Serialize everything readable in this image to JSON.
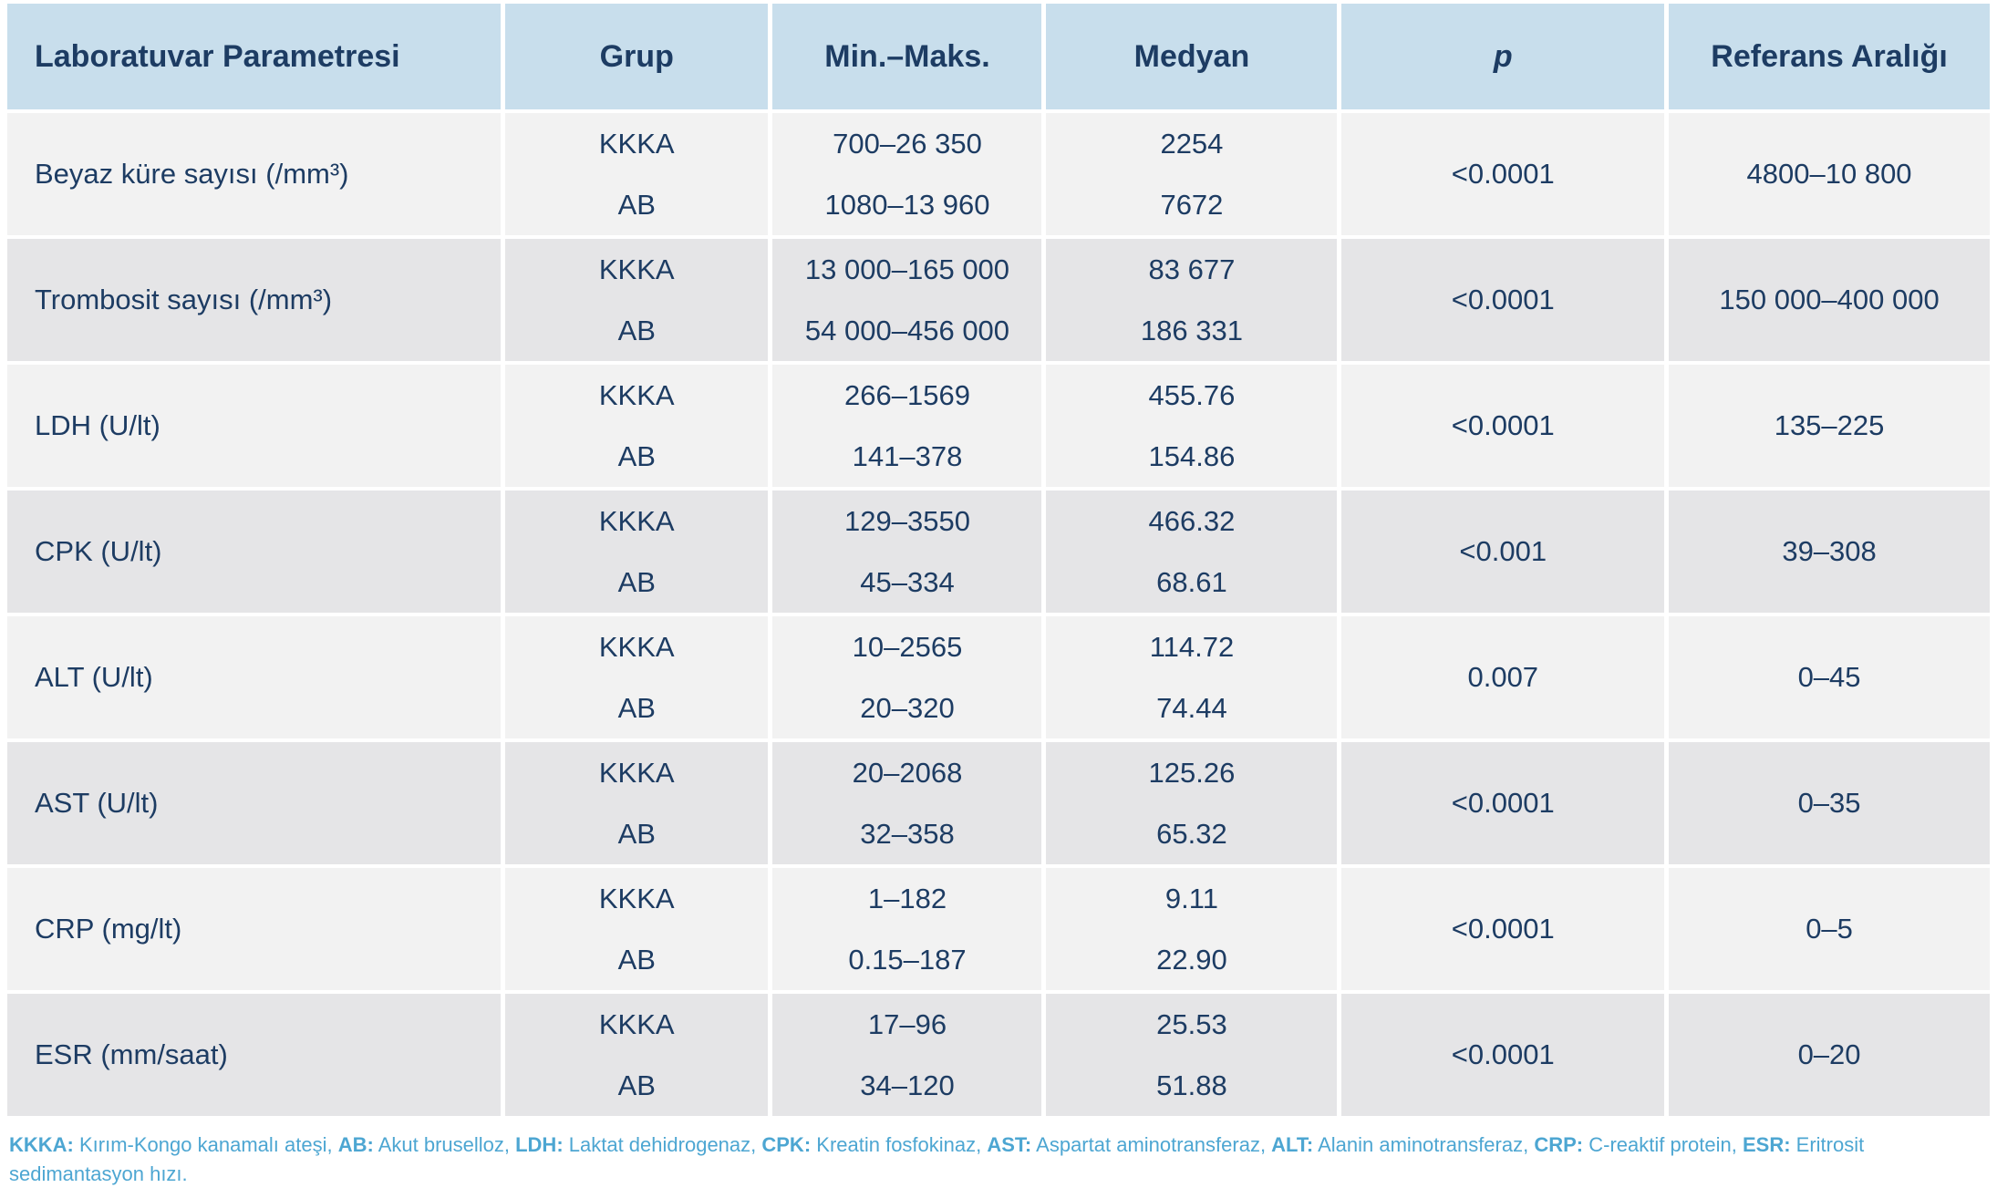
{
  "table": {
    "columns": [
      "Laboratuvar Parametresi",
      "Grup",
      "Min.–Maks.",
      "Medyan",
      "p",
      "Referans Aralığı"
    ],
    "rows": [
      {
        "parameter": "Beyaz küre sayısı (/mm³)",
        "groups": [
          "KKKA",
          "AB"
        ],
        "minmax": [
          "700–26 350",
          "1080–13 960"
        ],
        "median": [
          "2254",
          "7672"
        ],
        "p": "<0.0001",
        "reference": "4800–10 800"
      },
      {
        "parameter": "Trombosit sayısı (/mm³)",
        "groups": [
          "KKKA",
          "AB"
        ],
        "minmax": [
          "13 000–165 000",
          "54 000–456 000"
        ],
        "median": [
          "83 677",
          "186 331"
        ],
        "p": "<0.0001",
        "reference": "150 000–400 000"
      },
      {
        "parameter": "LDH (U/lt)",
        "groups": [
          "KKKA",
          "AB"
        ],
        "minmax": [
          "266–1569",
          "141–378"
        ],
        "median": [
          "455.76",
          "154.86"
        ],
        "p": "<0.0001",
        "reference": "135–225"
      },
      {
        "parameter": "CPK (U/lt)",
        "groups": [
          "KKKA",
          "AB"
        ],
        "minmax": [
          "129–3550",
          "45–334"
        ],
        "median": [
          "466.32",
          "68.61"
        ],
        "p": "<0.001",
        "reference": "39–308"
      },
      {
        "parameter": "ALT (U/lt)",
        "groups": [
          "KKKA",
          "AB"
        ],
        "minmax": [
          "10–2565",
          "20–320"
        ],
        "median": [
          "114.72",
          "74.44"
        ],
        "p": "0.007",
        "reference": "0–45"
      },
      {
        "parameter": "AST (U/lt)",
        "groups": [
          "KKKA",
          "AB"
        ],
        "minmax": [
          "20–2068",
          "32–358"
        ],
        "median": [
          "125.26",
          "65.32"
        ],
        "p": "<0.0001",
        "reference": "0–35"
      },
      {
        "parameter": "CRP (mg/lt)",
        "groups": [
          "KKKA",
          "AB"
        ],
        "minmax": [
          "1–182",
          "0.15–187"
        ],
        "median": [
          "9.11",
          "22.90"
        ],
        "p": "<0.0001",
        "reference": "0–5"
      },
      {
        "parameter": "ESR (mm/saat)",
        "groups": [
          "KKKA",
          "AB"
        ],
        "minmax": [
          "17–96",
          "34–120"
        ],
        "median": [
          "25.53",
          "51.88"
        ],
        "p": "<0.0001",
        "reference": "0–20"
      }
    ]
  },
  "footnote": {
    "segments": [
      {
        "label": "KKKA:",
        "text": " Kırım-Kongo kanamalı ateşi, "
      },
      {
        "label": "AB:",
        "text": " Akut bruselloz, "
      },
      {
        "label": "LDH:",
        "text": " Laktat dehidrogenaz, "
      },
      {
        "label": "CPK:",
        "text": " Kreatin fosfokinaz, "
      },
      {
        "label": "AST:",
        "text": " Aspartat aminotransferaz, "
      },
      {
        "label": "ALT:",
        "text": " Alanin aminotransferaz, "
      },
      {
        "label": "CRP:",
        "text": " C-reaktif protein, "
      },
      {
        "label": "ESR:",
        "text": " Eritrosit sedimantasyon hızı."
      }
    ]
  },
  "colors": {
    "header_background": "#c8deec",
    "row_light": "#f2f2f2",
    "row_dark": "#e5e5e7",
    "text_navy": "#1d3c63",
    "footnote_blue": "#4da6d2"
  }
}
